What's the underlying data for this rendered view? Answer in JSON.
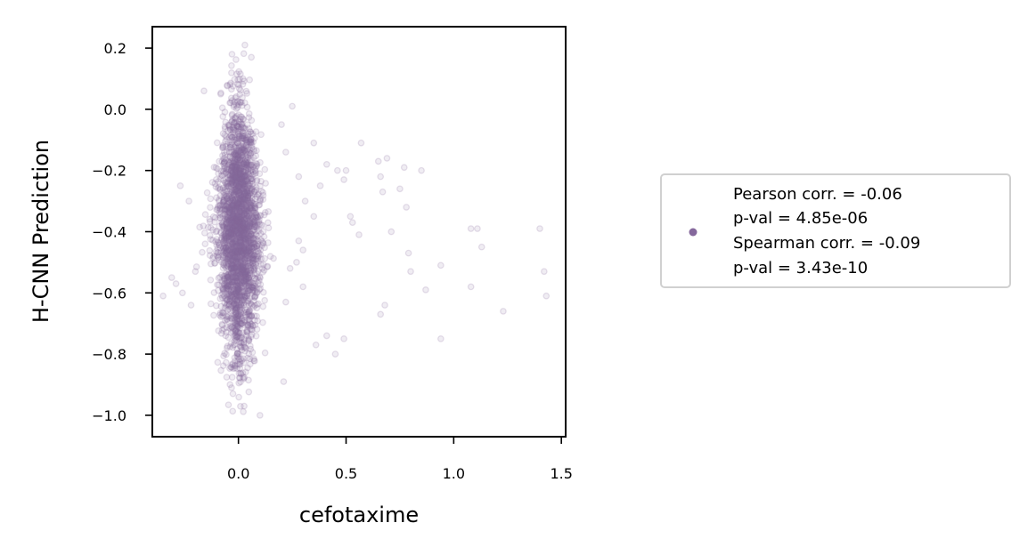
{
  "chart_data": {
    "type": "scatter",
    "title": "",
    "xlabel": "cefotaxime",
    "ylabel": "H-CNN Prediction",
    "xlim": [
      -0.4,
      1.52
    ],
    "ylim": [
      -1.07,
      0.27
    ],
    "xticks": [
      0.0,
      0.5,
      1.0,
      1.5
    ],
    "xtick_labels": [
      "0.0",
      "0.5",
      "1.0",
      "1.5"
    ],
    "yticks": [
      0.2,
      0.0,
      -0.2,
      -0.4,
      -0.6,
      -0.8,
      -1.0
    ],
    "ytick_labels": [
      "0.2",
      "0.0",
      "−0.2",
      "−0.4",
      "−0.6",
      "−0.8",
      "−1.0"
    ],
    "grid": false,
    "legend_position": "right",
    "marker_color": "#85689c",
    "marker_alpha": 0.2,
    "legend": {
      "lines": [
        "Pearson corr. = -0.06",
        "p-val = 4.85e-06",
        "Spearman corr. = -0.09",
        "p-val = 3.43e-10"
      ]
    },
    "dense_cluster": {
      "x_center": 0.0,
      "x_spread": 0.12,
      "y_range": [
        -1.0,
        0.21
      ],
      "y_center": -0.4
    },
    "outliers": [
      [
        0.35,
        -0.11
      ],
      [
        0.57,
        -0.11
      ],
      [
        0.65,
        -0.17
      ],
      [
        0.69,
        -0.16
      ],
      [
        0.77,
        -0.19
      ],
      [
        0.85,
        -0.2
      ],
      [
        0.41,
        -0.18
      ],
      [
        0.46,
        -0.2
      ],
      [
        0.5,
        -0.2
      ],
      [
        0.66,
        -0.22
      ],
      [
        0.49,
        -0.23
      ],
      [
        0.75,
        -0.26
      ],
      [
        0.67,
        -0.27
      ],
      [
        0.78,
        -0.32
      ],
      [
        0.38,
        -0.25
      ],
      [
        0.52,
        -0.35
      ],
      [
        0.53,
        -0.37
      ],
      [
        0.35,
        -0.35
      ],
      [
        0.71,
        -0.4
      ],
      [
        0.56,
        -0.41
      ],
      [
        1.08,
        -0.39
      ],
      [
        1.11,
        -0.39
      ],
      [
        1.4,
        -0.39
      ],
      [
        1.13,
        -0.45
      ],
      [
        0.79,
        -0.47
      ],
      [
        0.94,
        -0.51
      ],
      [
        0.8,
        -0.53
      ],
      [
        1.42,
        -0.53
      ],
      [
        0.87,
        -0.59
      ],
      [
        1.08,
        -0.58
      ],
      [
        1.43,
        -0.61
      ],
      [
        0.68,
        -0.64
      ],
      [
        0.66,
        -0.67
      ],
      [
        1.23,
        -0.66
      ],
      [
        0.41,
        -0.74
      ],
      [
        0.49,
        -0.75
      ],
      [
        0.94,
        -0.75
      ],
      [
        0.45,
        -0.8
      ],
      [
        0.36,
        -0.77
      ],
      [
        -0.27,
        -0.25
      ],
      [
        -0.23,
        -0.3
      ],
      [
        -0.31,
        -0.55
      ],
      [
        -0.29,
        -0.57
      ],
      [
        -0.26,
        -0.6
      ],
      [
        -0.35,
        -0.61
      ],
      [
        -0.22,
        -0.64
      ],
      [
        -0.2,
        -0.53
      ],
      [
        -0.16,
        0.06
      ],
      [
        0.25,
        0.01
      ],
      [
        0.2,
        -0.05
      ],
      [
        0.22,
        -0.14
      ],
      [
        0.28,
        -0.22
      ],
      [
        0.31,
        -0.3
      ],
      [
        0.28,
        -0.43
      ],
      [
        0.3,
        -0.46
      ],
      [
        0.27,
        -0.5
      ],
      [
        0.24,
        -0.52
      ],
      [
        0.3,
        -0.58
      ],
      [
        0.22,
        -0.63
      ],
      [
        0.21,
        -0.89
      ],
      [
        0.1,
        -1.0
      ],
      [
        0.03,
        0.21
      ],
      [
        0.06,
        0.17
      ],
      [
        -0.03,
        0.18
      ]
    ]
  }
}
